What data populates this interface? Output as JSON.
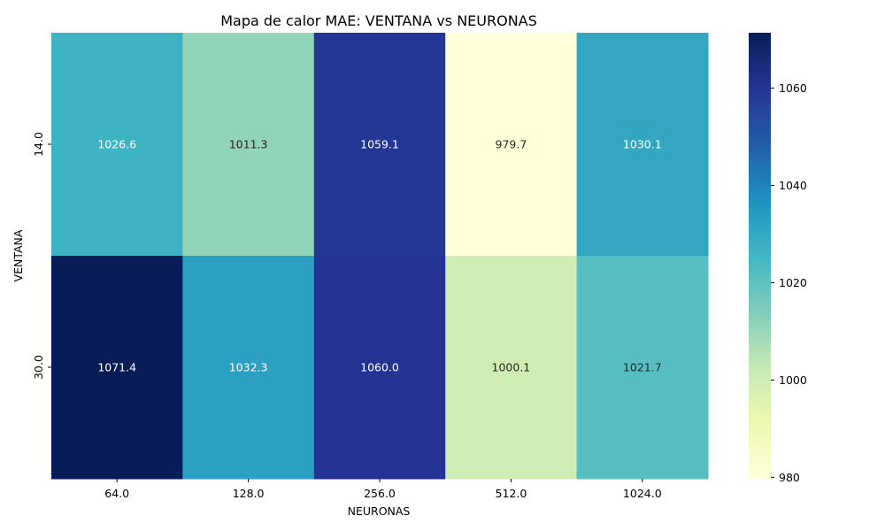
{
  "chart_data": {
    "type": "heatmap",
    "title": "Mapa de calor MAE: VENTANA vs NEURONAS",
    "xlabel": "NEURONAS",
    "ylabel": "VENTANA",
    "x_categories": [
      "64.0",
      "128.0",
      "256.0",
      "512.0",
      "1024.0"
    ],
    "y_categories": [
      "14.0",
      "30.0"
    ],
    "values": [
      [
        1026.6,
        1011.3,
        1059.1,
        979.7,
        1030.1
      ],
      [
        1071.4,
        1032.3,
        1060.0,
        1000.1,
        1021.7
      ]
    ],
    "value_format": "0.1f",
    "colormap": "YlGnBu",
    "colorbar": {
      "range": [
        979.7,
        1071.4
      ],
      "ticks": [
        980,
        1000,
        1020,
        1040,
        1060
      ]
    }
  }
}
